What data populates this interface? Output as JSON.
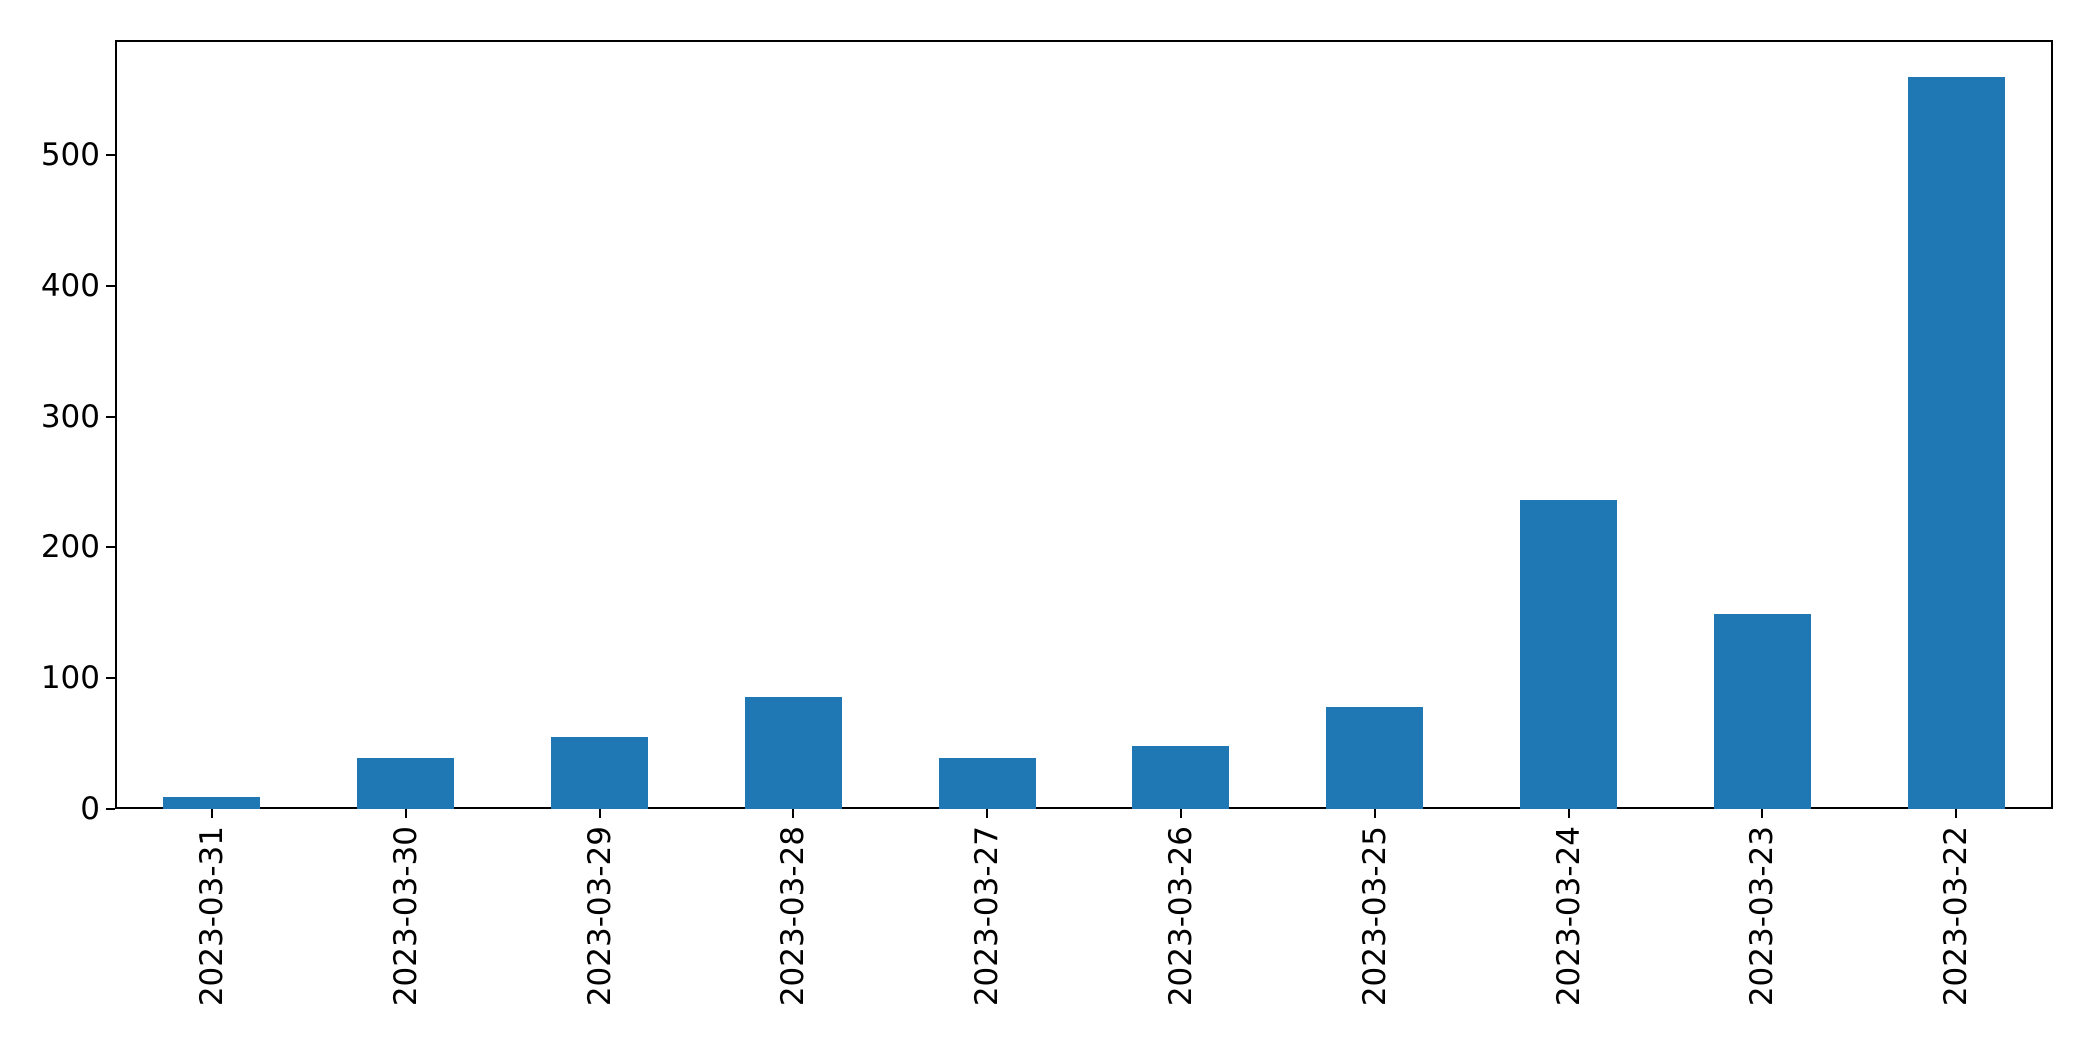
{
  "chart_data": {
    "type": "bar",
    "title": "",
    "subtitle": "",
    "xlabel": "",
    "ylabel": "",
    "categories": [
      "2023-03-31",
      "2023-03-30",
      "2023-03-29",
      "2023-03-28",
      "2023-03-27",
      "2023-03-26",
      "2023-03-25",
      "2023-03-24",
      "2023-03-23",
      "2023-03-22"
    ],
    "values": [
      9,
      39,
      55,
      86,
      39,
      48,
      78,
      236,
      149,
      560
    ],
    "yticks": [
      0,
      100,
      200,
      300,
      400,
      500
    ],
    "ylim": [
      0,
      588
    ],
    "grid": false,
    "legend_position": "none",
    "x_tick_label_rotation_deg": 90,
    "bar_color": "#1f77b4",
    "axis_color": "#000000",
    "background_color": "#ffffff"
  }
}
